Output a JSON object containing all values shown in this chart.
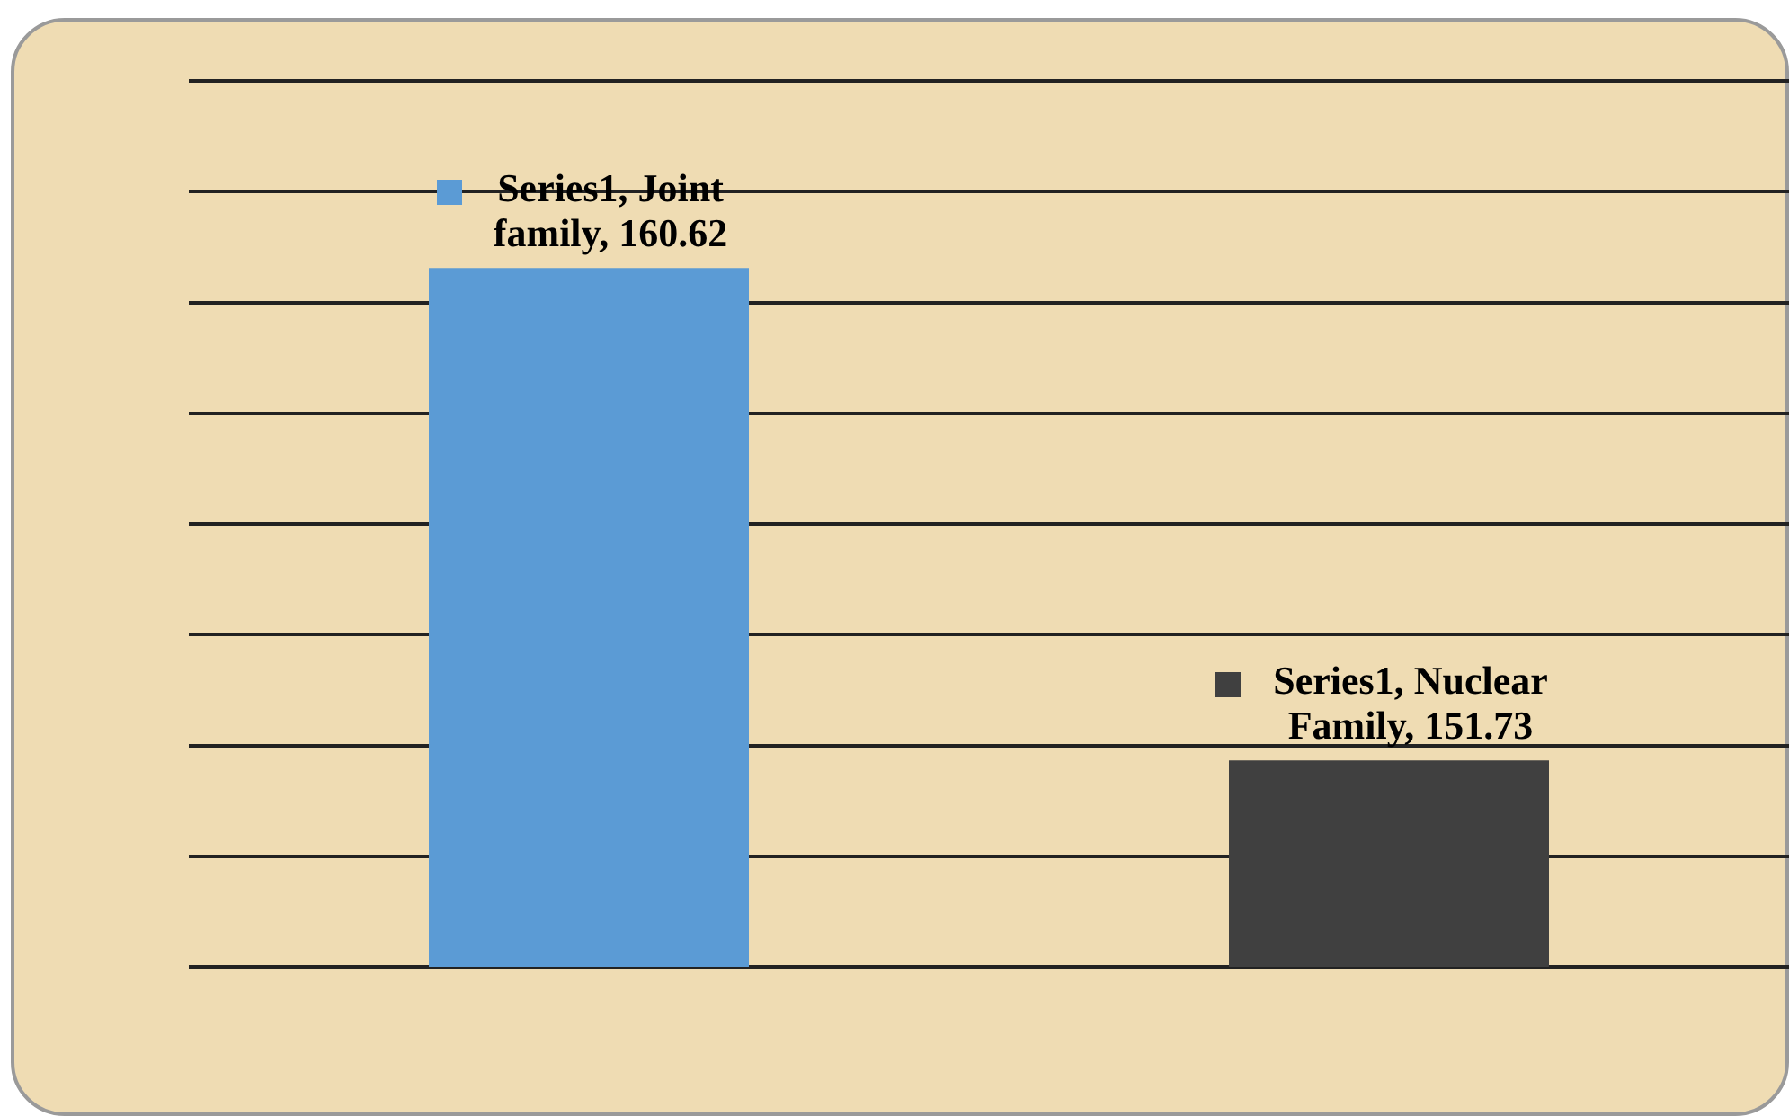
{
  "chart_data": {
    "type": "bar",
    "categories": [
      null,
      null
    ],
    "series": [
      {
        "values": [
          160.62,
          151.73
        ],
        "colors": [
          "#5b9bd5",
          "#404040"
        ],
        "value_labels": [
          "Series1, Joint family, 160.62",
          "Series1, Nuclear Family, 151.73"
        ]
      }
    ],
    "grid": "y",
    "tick_labels": false,
    "legend": false
  }
}
